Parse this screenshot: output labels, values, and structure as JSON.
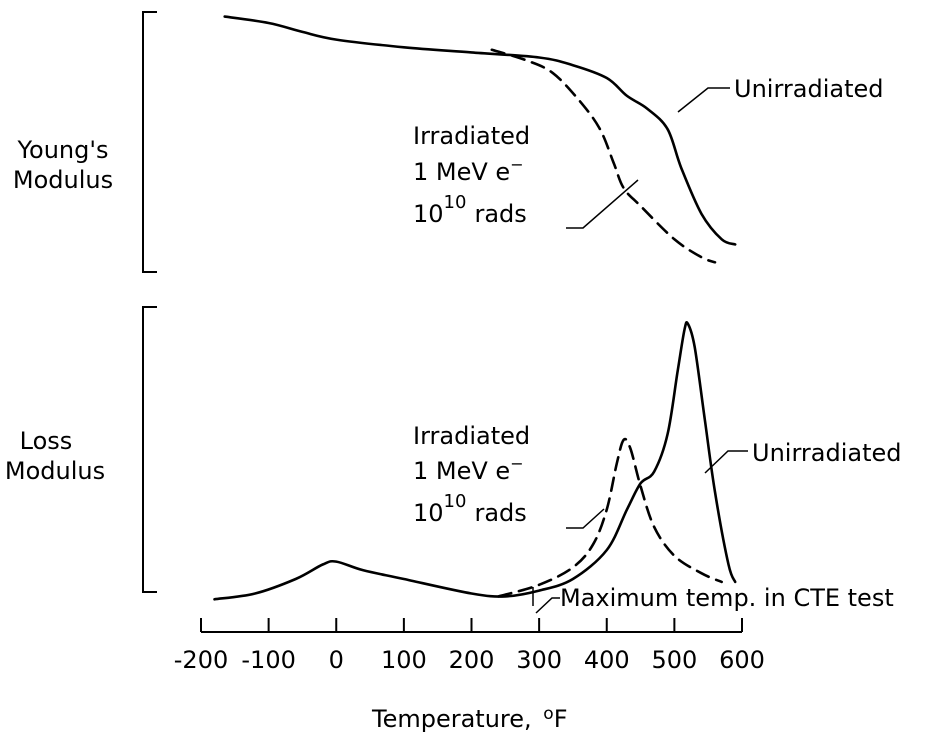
{
  "chart_data": [
    {
      "type": "line",
      "ylabel_lines": [
        "Young's",
        "Modulus"
      ],
      "xlim": [
        -200,
        600
      ],
      "y_ticks_shown": false,
      "grid": false,
      "series": [
        {
          "name": "Unirradiated",
          "style": "solid",
          "points": [
            [
              -165,
              0.99
            ],
            [
              -100,
              0.965
            ],
            [
              -50,
              0.93
            ],
            [
              0,
              0.9
            ],
            [
              100,
              0.87
            ],
            [
              200,
              0.85
            ],
            [
              300,
              0.83
            ],
            [
              350,
              0.8
            ],
            [
              400,
              0.75
            ],
            [
              430,
              0.68
            ],
            [
              460,
              0.63
            ],
            [
              490,
              0.55
            ],
            [
              510,
              0.4
            ],
            [
              540,
              0.22
            ],
            [
              570,
              0.12
            ],
            [
              590,
              0.1
            ]
          ]
        },
        {
          "name": "Irradiated 1 MeV e⁻ 10¹⁰ rads",
          "style": "dashed",
          "points": [
            [
              230,
              0.86
            ],
            [
              280,
              0.82
            ],
            [
              320,
              0.77
            ],
            [
              360,
              0.66
            ],
            [
              390,
              0.55
            ],
            [
              410,
              0.42
            ],
            [
              425,
              0.32
            ],
            [
              450,
              0.25
            ],
            [
              500,
              0.12
            ],
            [
              540,
              0.05
            ],
            [
              560,
              0.03
            ]
          ]
        }
      ],
      "annotations": [
        {
          "lines": [
            "Irradiated",
            "1 MeV e⁻",
            "10¹⁰ rads"
          ],
          "target": "dashed curve"
        },
        {
          "text": "Unirradiated",
          "target": "solid curve"
        }
      ]
    },
    {
      "type": "line",
      "ylabel_lines": [
        "Loss",
        "Modulus"
      ],
      "xlim": [
        -200,
        600
      ],
      "y_ticks_shown": false,
      "grid": false,
      "series": [
        {
          "name": "Unirradiated",
          "style": "solid",
          "points": [
            [
              -180,
              0.03
            ],
            [
              -120,
              0.05
            ],
            [
              -60,
              0.1
            ],
            [
              -20,
              0.15
            ],
            [
              0,
              0.16
            ],
            [
              40,
              0.13
            ],
            [
              100,
              0.1
            ],
            [
              200,
              0.05
            ],
            [
              250,
              0.04
            ],
            [
              300,
              0.06
            ],
            [
              350,
              0.1
            ],
            [
              400,
              0.2
            ],
            [
              430,
              0.34
            ],
            [
              450,
              0.43
            ],
            [
              470,
              0.47
            ],
            [
              490,
              0.6
            ],
            [
              505,
              0.82
            ],
            [
              515,
              0.96
            ],
            [
              520,
              0.98
            ],
            [
              530,
              0.9
            ],
            [
              545,
              0.65
            ],
            [
              560,
              0.4
            ],
            [
              580,
              0.15
            ],
            [
              590,
              0.09
            ]
          ]
        },
        {
          "name": "Irradiated 1 MeV e⁻ 10¹⁰ rads",
          "style": "dashed",
          "points": [
            [
              240,
              0.04
            ],
            [
              300,
              0.08
            ],
            [
              350,
              0.14
            ],
            [
              380,
              0.22
            ],
            [
              400,
              0.34
            ],
            [
              415,
              0.5
            ],
            [
              425,
              0.58
            ],
            [
              435,
              0.55
            ],
            [
              450,
              0.42
            ],
            [
              470,
              0.28
            ],
            [
              500,
              0.18
            ],
            [
              540,
              0.12
            ],
            [
              570,
              0.09
            ]
          ]
        }
      ],
      "annotations": [
        {
          "lines": [
            "Irradiated",
            "1 MeV e⁻",
            "10¹⁰ rads"
          ],
          "target": "dashed curve"
        },
        {
          "text": "Unirradiated",
          "target": "solid curve"
        },
        {
          "text": "Maximum temp. in CTE test",
          "x": 285
        }
      ]
    }
  ],
  "x_axis": {
    "label": "Temperature, ",
    "label_unit": "oF",
    "ticks": [
      -200,
      -100,
      0,
      100,
      200,
      300,
      400,
      500,
      600
    ],
    "tick_labels": [
      "-200",
      "-100",
      "0",
      "100",
      "200",
      "300",
      "400",
      "500",
      "600"
    ]
  },
  "text": {
    "young_line1": "Young's",
    "young_line2": "Modulus",
    "loss_line1": "Loss",
    "loss_line2": "Modulus",
    "irr_line1": "Irradiated",
    "irr_line2": "1 MeV e",
    "irr_minus": "−",
    "irr_base": "10",
    "irr_exp": "10",
    "irr_rads": "rads",
    "unirradiated": "Unirradiated",
    "max_temp": "Maximum temp. in CTE test",
    "xlabel": "Temperature, ",
    "xunit_sup": "o",
    "xunit": "F"
  }
}
